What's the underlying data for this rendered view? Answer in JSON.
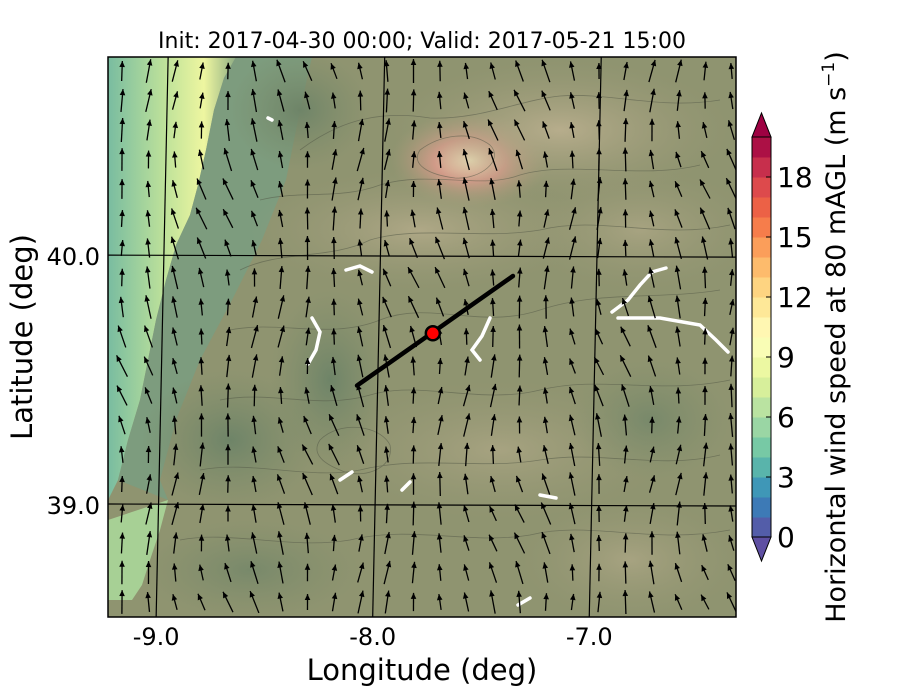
{
  "chart_data": {
    "type": "heatmap",
    "title": "Init: 2017-04-30 00:00; Valid: 2017-05-21 15:00",
    "xlabel": "Longitude (deg)",
    "ylabel": "Latitude (deg)",
    "xlim": [
      -9.25,
      -6.35
    ],
    "ylim": [
      38.55,
      40.8
    ],
    "x_ticks": [
      -9.0,
      -8.0,
      -7.0
    ],
    "x_tick_labels": [
      "-9.0",
      "-8.0",
      "-7.0"
    ],
    "y_ticks": [
      39.0,
      40.0
    ],
    "y_tick_labels": [
      "39.0",
      "40.0"
    ],
    "grid": true,
    "colorbar": {
      "label": "Horizontal wind speed at 80 mAGL (m s",
      "label_exponent": "−1",
      "label_close": ")",
      "min": 0,
      "max": 20,
      "step": 1,
      "extend": "both",
      "ticks": [
        0,
        3,
        6,
        9,
        12,
        15,
        18
      ],
      "tick_labels": [
        "0",
        "3",
        "6",
        "9",
        "12",
        "15",
        "18"
      ],
      "colormap": [
        "#5e4fa2",
        "#3288bd",
        "#66c2a5",
        "#abdda4",
        "#e6f598",
        "#ffffbf",
        "#fee08b",
        "#fdae61",
        "#f46d43",
        "#d53e4f",
        "#9e0142"
      ]
    },
    "transect_line": {
      "start": [
        -8.1,
        39.48
      ],
      "end": [
        -7.38,
        39.92
      ],
      "color": "#000000"
    },
    "site_marker": {
      "lon": -7.75,
      "lat": 39.69,
      "color": "#ff0000"
    },
    "wind_field": {
      "arrow_color": "#000000",
      "prevailing_direction": "from the south"
    }
  }
}
